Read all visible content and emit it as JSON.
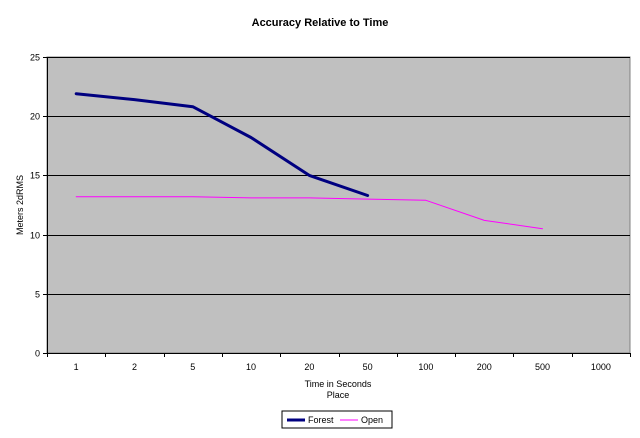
{
  "chart_data": {
    "type": "line",
    "title": "Accuracy Relative to Time",
    "xlabel": "Time in Seconds",
    "xlabel2": "Place",
    "ylabel": "Meters 2dRMS",
    "categories": [
      "1",
      "2",
      "5",
      "10",
      "20",
      "50",
      "100",
      "200",
      "500",
      "1000"
    ],
    "ylim": [
      0,
      25
    ],
    "yticks": [
      "0",
      "5",
      "10",
      "15",
      "20",
      "25"
    ],
    "grid": true,
    "legend_position": "bottom",
    "series": [
      {
        "name": "Forest",
        "color": "#000080",
        "values": [
          21.9,
          21.4,
          20.8,
          18.2,
          15.0,
          13.3,
          null,
          null,
          null,
          null
        ]
      },
      {
        "name": "Open",
        "color": "#ff00ff",
        "values": [
          13.2,
          13.2,
          13.2,
          13.1,
          13.1,
          13.0,
          12.9,
          11.2,
          10.5,
          null
        ]
      }
    ],
    "plot_background": "#c0c0c0"
  }
}
